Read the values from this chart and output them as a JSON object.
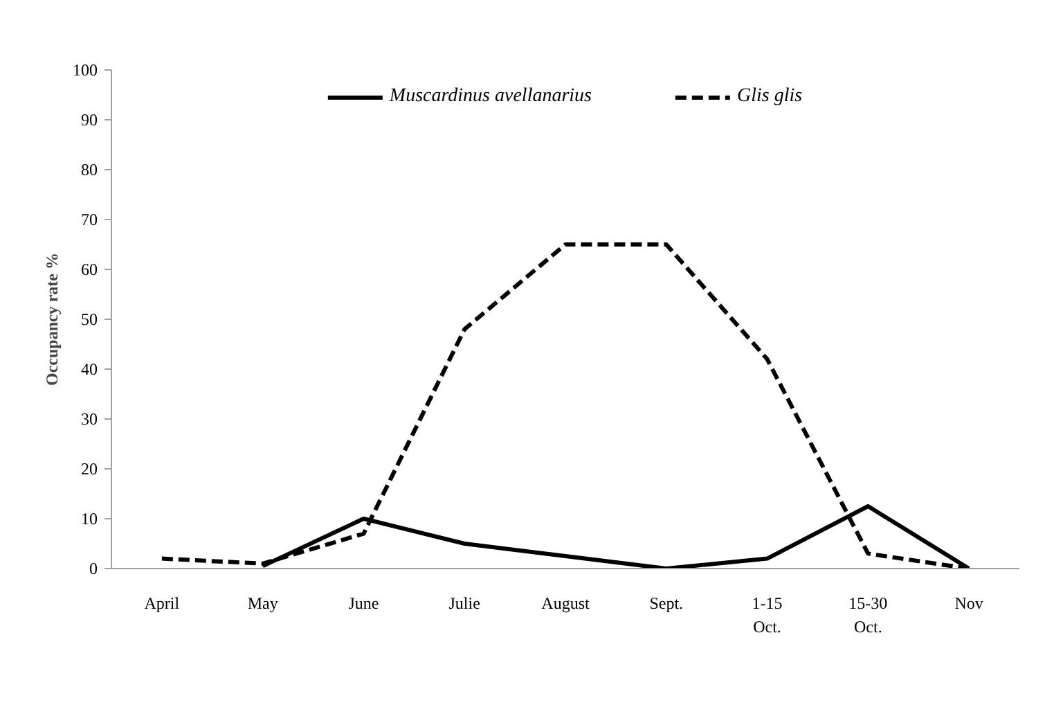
{
  "chart_data": {
    "type": "line",
    "ylabel": "Occupancy rate %",
    "categories": [
      "April",
      "May",
      "June",
      "Julie",
      "August",
      "Sept.",
      "1-15 Oct.",
      "15-30 Oct.",
      "Nov"
    ],
    "series": [
      {
        "name": "Muscardinus avellanarius",
        "color": "#000000",
        "line_style": "solid",
        "values": [
          null,
          0.5,
          10,
          5,
          2.5,
          0,
          2,
          12.5,
          0
        ]
      },
      {
        "name": "Glis glis",
        "color": "#000000",
        "line_style": "dashed",
        "values": [
          2,
          1,
          7,
          48,
          65,
          65,
          42,
          3,
          0
        ]
      }
    ],
    "ylim": [
      0,
      100
    ],
    "yticks": [
      0,
      10,
      20,
      30,
      40,
      50,
      60,
      70,
      80,
      90,
      100
    ],
    "grid": false,
    "legend": "top"
  }
}
